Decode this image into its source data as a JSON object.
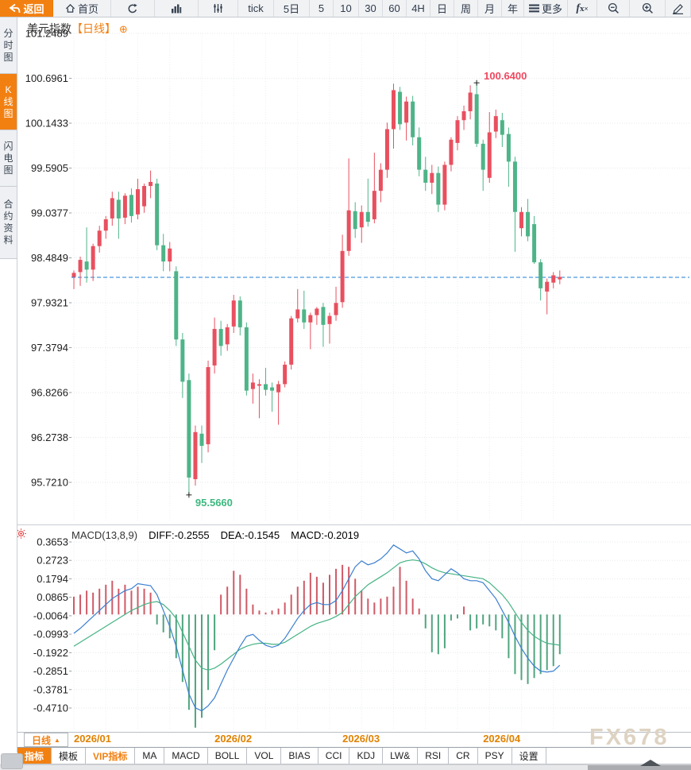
{
  "toolbar": {
    "items": [
      {
        "name": "back",
        "label": "返回",
        "icon": "back-arrow",
        "style": "primary",
        "w": 67
      },
      {
        "name": "home",
        "label": "首页",
        "icon": "home",
        "w": 73
      },
      {
        "name": "refresh",
        "label": "",
        "icon": "refresh",
        "w": 55
      },
      {
        "name": "column-chart",
        "label": "",
        "icon": "column-chart",
        "w": 55
      },
      {
        "name": "sliders",
        "label": "",
        "icon": "sliders",
        "w": 50
      },
      {
        "name": "tick",
        "label": "tick",
        "w": 45
      },
      {
        "name": "5d",
        "label": "5日",
        "w": 45
      },
      {
        "name": "5",
        "label": "5",
        "w": 30
      },
      {
        "name": "10",
        "label": "10",
        "w": 32
      },
      {
        "name": "30",
        "label": "30",
        "w": 30
      },
      {
        "name": "60",
        "label": "60",
        "w": 30
      },
      {
        "name": "4h",
        "label": "4H",
        "w": 30
      },
      {
        "name": "day",
        "label": "日",
        "w": 30
      },
      {
        "name": "week",
        "label": "周",
        "w": 30
      },
      {
        "name": "month",
        "label": "月",
        "w": 30
      },
      {
        "name": "year",
        "label": "年",
        "w": 28
      },
      {
        "name": "more",
        "label": "更多",
        "icon": "menu",
        "w": 55
      },
      {
        "name": "fx",
        "label": "",
        "icon": "fx",
        "w": 37
      },
      {
        "name": "zoom-out",
        "label": "",
        "icon": "zoom-out",
        "w": 41
      },
      {
        "name": "zoom-in",
        "label": "",
        "icon": "zoom-in",
        "w": 45
      },
      {
        "name": "draw",
        "label": "",
        "icon": "pencil",
        "w": 32
      }
    ]
  },
  "sidebar": {
    "items": [
      {
        "name": "time-chart",
        "label": "分时图",
        "active": false,
        "h": 70
      },
      {
        "name": "kline-chart",
        "label": "K线图",
        "active": true,
        "h": 70
      },
      {
        "name": "lightning-chart",
        "label": "闪电图",
        "active": false,
        "h": 70
      },
      {
        "name": "contract-info",
        "label": "合约资料",
        "active": false,
        "h": 90
      }
    ]
  },
  "chart_header": {
    "symbol": "美元指数",
    "period": "【日线】",
    "add_icon": "⊕"
  },
  "macd_header": {
    "name": "MACD(13,8,9)",
    "diff": "DIFF:-0.2555",
    "dea": "DEA:-0.1545",
    "macd": "MACD:-0.2019"
  },
  "period_selector": {
    "label": "日线",
    "arrow": "▲"
  },
  "bottom_tabs": {
    "items": [
      {
        "name": "indicator",
        "label": "指标",
        "style": "active"
      },
      {
        "name": "template",
        "label": "模板",
        "style": ""
      },
      {
        "name": "vip-indicator",
        "label": "VIP指标",
        "style": "vip"
      },
      {
        "name": "ma",
        "label": "MA",
        "style": ""
      },
      {
        "name": "macd",
        "label": "MACD",
        "style": ""
      },
      {
        "name": "boll",
        "label": "BOLL",
        "style": ""
      },
      {
        "name": "vol",
        "label": "VOL",
        "style": ""
      },
      {
        "name": "bias",
        "label": "BIAS",
        "style": ""
      },
      {
        "name": "cci",
        "label": "CCI",
        "style": ""
      },
      {
        "name": "kdj",
        "label": "KDJ",
        "style": ""
      },
      {
        "name": "lw",
        "label": "LW&",
        "style": ""
      },
      {
        "name": "rsi",
        "label": "RSI",
        "style": ""
      },
      {
        "name": "cr",
        "label": "CR",
        "style": ""
      },
      {
        "name": "psy",
        "label": "PSY",
        "style": ""
      },
      {
        "name": "settings",
        "label": "设置",
        "style": ""
      }
    ]
  },
  "watermark": {
    "text": "FX678"
  },
  "colors": {
    "accent_orange": "#f28011",
    "candle_up": "#e8505f",
    "candle_down": "#4eb488",
    "hist_up": "#cf5a66",
    "hist_down": "#4fa57e",
    "diff_line": "#3b7fd0",
    "dea_line": "#45b384",
    "last_price_line": "#1c7cd6",
    "annotation_high": "#f0485f",
    "annotation_low": "#3cb87f",
    "month_label": "#e08200",
    "tick_label": "#1d1d1d",
    "grid": "#e7e9ec",
    "vgrid": "#edeff1",
    "panel_border": "#c8ccd1"
  },
  "chart_data": [
    {
      "type": "candlestick",
      "title": "美元指数【日线】",
      "ylabel": "price",
      "y_ticks": [
        "101.2489",
        "100.6961",
        "100.1433",
        "99.5905",
        "99.0377",
        "98.4849",
        "97.9321",
        "97.3794",
        "96.8266",
        "96.2738",
        "95.7210"
      ],
      "ylim": [
        95.721,
        101.2489
      ],
      "x_axis_labels": [
        {
          "label": "2026/01",
          "index": 0
        },
        {
          "label": "2026/02",
          "index": 22
        },
        {
          "label": "2026/03",
          "index": 42
        },
        {
          "label": "2026/04",
          "index": 64
        }
      ],
      "last_price": 98.245,
      "annotations": [
        {
          "kind": "high",
          "index": 63,
          "label": "100.6400"
        },
        {
          "kind": "low",
          "index": 18,
          "label": "95.5660"
        }
      ],
      "candles": [
        [
          98.25,
          98.33,
          98.1,
          98.3
        ],
        [
          98.31,
          98.5,
          98.14,
          98.46
        ],
        [
          98.44,
          98.86,
          98.18,
          98.34
        ],
        [
          98.34,
          98.66,
          98.2,
          98.63
        ],
        [
          98.63,
          98.88,
          98.55,
          98.82
        ],
        [
          98.82,
          99.0,
          98.72,
          98.96
        ],
        [
          98.97,
          99.3,
          98.88,
          99.22
        ],
        [
          99.2,
          99.3,
          98.72,
          98.97
        ],
        [
          98.98,
          99.28,
          98.9,
          99.25
        ],
        [
          99.26,
          99.34,
          98.92,
          99.0
        ],
        [
          99.02,
          99.46,
          98.96,
          99.33
        ],
        [
          99.12,
          99.4,
          99.04,
          99.37
        ],
        [
          99.37,
          99.56,
          99.22,
          99.42
        ],
        [
          99.4,
          99.46,
          98.58,
          98.64
        ],
        [
          98.64,
          98.78,
          98.32,
          98.44
        ],
        [
          98.44,
          98.68,
          98.32,
          98.6
        ],
        [
          98.32,
          98.38,
          97.4,
          97.48
        ],
        [
          97.48,
          97.56,
          96.76,
          96.96
        ],
        [
          96.98,
          97.06,
          95.566,
          95.78
        ],
        [
          95.76,
          96.42,
          95.68,
          96.34
        ],
        [
          96.32,
          96.42,
          95.96,
          96.17
        ],
        [
          96.19,
          97.22,
          96.09,
          97.14
        ],
        [
          97.16,
          97.75,
          97.06,
          97.61
        ],
        [
          97.61,
          97.71,
          97.28,
          97.4
        ],
        [
          97.42,
          97.67,
          97.34,
          97.63
        ],
        [
          97.64,
          98.03,
          97.56,
          97.96
        ],
        [
          97.96,
          98.01,
          97.53,
          97.63
        ],
        [
          97.63,
          97.69,
          96.79,
          96.85
        ],
        [
          96.87,
          97.06,
          96.69,
          96.95
        ],
        [
          96.91,
          96.99,
          96.51,
          96.93
        ],
        [
          96.93,
          97.13,
          96.79,
          96.86
        ],
        [
          96.89,
          96.95,
          96.59,
          96.85
        ],
        [
          96.83,
          96.97,
          96.43,
          96.93
        ],
        [
          96.93,
          97.21,
          96.89,
          97.17
        ],
        [
          97.17,
          97.77,
          97.11,
          97.74
        ],
        [
          97.74,
          98.1,
          97.69,
          97.85
        ],
        [
          97.85,
          98.08,
          97.61,
          97.69
        ],
        [
          97.69,
          97.81,
          97.36,
          97.78
        ],
        [
          97.78,
          97.88,
          97.66,
          97.86
        ],
        [
          97.88,
          97.93,
          97.39,
          97.66
        ],
        [
          97.67,
          97.81,
          97.43,
          97.77
        ],
        [
          97.78,
          98.13,
          97.71,
          97.93
        ],
        [
          97.94,
          98.77,
          97.87,
          98.57
        ],
        [
          98.57,
          99.71,
          98.51,
          99.07
        ],
        [
          99.06,
          99.17,
          98.73,
          98.84
        ],
        [
          98.86,
          99.13,
          98.67,
          99.05
        ],
        [
          99.05,
          99.46,
          98.87,
          98.93
        ],
        [
          98.96,
          99.78,
          98.91,
          99.31
        ],
        [
          99.31,
          99.65,
          99.17,
          99.57
        ],
        [
          99.57,
          100.15,
          99.47,
          100.07
        ],
        [
          100.07,
          100.63,
          99.83,
          100.55
        ],
        [
          100.53,
          100.59,
          100.06,
          100.13
        ],
        [
          100.15,
          100.47,
          99.93,
          100.41
        ],
        [
          100.41,
          100.48,
          99.87,
          99.97
        ],
        [
          99.97,
          100.09,
          99.49,
          99.57
        ],
        [
          99.57,
          99.73,
          99.31,
          99.41
        ],
        [
          99.41,
          99.63,
          99.27,
          99.53
        ],
        [
          99.53,
          99.61,
          99.05,
          99.14
        ],
        [
          99.14,
          99.67,
          99.07,
          99.63
        ],
        [
          99.63,
          99.97,
          99.55,
          99.94
        ],
        [
          99.9,
          100.23,
          99.81,
          100.18
        ],
        [
          100.18,
          100.36,
          100.06,
          100.29
        ],
        [
          100.29,
          100.61,
          100.19,
          100.52
        ],
        [
          100.5,
          100.64,
          99.85,
          99.89
        ],
        [
          99.89,
          99.94,
          99.31,
          99.57
        ],
        [
          99.47,
          100.28,
          99.41,
          100.03
        ],
        [
          100.04,
          100.31,
          99.96,
          100.23
        ],
        [
          100.18,
          100.27,
          99.85,
          100.0
        ],
        [
          100.01,
          100.09,
          99.36,
          99.67
        ],
        [
          99.67,
          99.73,
          98.56,
          99.05
        ],
        [
          98.85,
          99.11,
          98.75,
          99.05
        ],
        [
          99.05,
          99.21,
          98.69,
          98.75
        ],
        [
          98.9,
          99.0,
          98.41,
          98.43
        ],
        [
          98.43,
          98.47,
          97.96,
          98.11
        ],
        [
          98.07,
          98.23,
          97.79,
          98.19
        ],
        [
          98.18,
          98.31,
          98.11,
          98.27
        ],
        [
          98.22,
          98.33,
          98.16,
          98.25
        ]
      ]
    },
    {
      "type": "macd",
      "label": "MACD(13,8,9)",
      "diff_value": -0.2555,
      "dea_value": -0.1545,
      "macd_value": -0.2019,
      "y_ticks": [
        "0.3653",
        "0.2723",
        "0.1794",
        "0.0865",
        "-0.0064",
        "-0.0993",
        "-0.1922",
        "-0.2851",
        "-0.3781",
        "-0.4710"
      ],
      "ylim": [
        -0.471,
        0.3653
      ],
      "histogram": [
        0.09,
        0.1,
        0.12,
        0.11,
        0.13,
        0.15,
        0.17,
        0.13,
        0.15,
        0.12,
        0.14,
        0.13,
        0.11,
        -0.05,
        -0.09,
        -0.12,
        -0.22,
        -0.34,
        -0.48,
        -0.57,
        -0.52,
        -0.38,
        -0.18,
        0.1,
        0.14,
        0.22,
        0.2,
        0.13,
        0.05,
        0.02,
        0.01,
        0.02,
        0.03,
        0.06,
        0.1,
        0.14,
        0.17,
        0.21,
        0.19,
        0.16,
        0.2,
        0.23,
        0.25,
        0.24,
        0.18,
        0.12,
        0.08,
        0.06,
        0.08,
        0.09,
        0.14,
        0.24,
        0.17,
        0.08,
        0.03,
        -0.07,
        -0.19,
        -0.2,
        -0.17,
        -0.03,
        -0.02,
        0.04,
        -0.08,
        -0.07,
        -0.05,
        -0.06,
        -0.08,
        -0.12,
        -0.22,
        -0.3,
        -0.33,
        -0.35,
        -0.32,
        -0.3,
        -0.28,
        -0.26,
        -0.2
      ],
      "diff_line": [
        -0.095,
        -0.07,
        -0.04,
        -0.01,
        0.02,
        0.05,
        0.08,
        0.1,
        0.12,
        0.13,
        0.155,
        0.15,
        0.145,
        0.1,
        0.02,
        -0.06,
        -0.16,
        -0.28,
        -0.4,
        -0.47,
        -0.485,
        -0.46,
        -0.42,
        -0.35,
        -0.28,
        -0.22,
        -0.16,
        -0.11,
        -0.1,
        -0.13,
        -0.155,
        -0.165,
        -0.155,
        -0.12,
        -0.07,
        -0.02,
        0.02,
        0.05,
        0.06,
        0.05,
        0.05,
        0.07,
        0.12,
        0.18,
        0.24,
        0.27,
        0.25,
        0.26,
        0.28,
        0.31,
        0.35,
        0.33,
        0.31,
        0.32,
        0.28,
        0.22,
        0.18,
        0.17,
        0.2,
        0.23,
        0.21,
        0.18,
        0.17,
        0.17,
        0.16,
        0.12,
        0.08,
        0.02,
        -0.04,
        -0.11,
        -0.17,
        -0.22,
        -0.26,
        -0.285,
        -0.29,
        -0.285,
        -0.2555
      ],
      "dea_line": [
        -0.16,
        -0.14,
        -0.12,
        -0.1,
        -0.08,
        -0.06,
        -0.04,
        -0.02,
        0.0,
        0.02,
        0.035,
        0.05,
        0.06,
        0.065,
        0.05,
        0.02,
        -0.02,
        -0.09,
        -0.16,
        -0.23,
        -0.27,
        -0.28,
        -0.27,
        -0.25,
        -0.225,
        -0.2,
        -0.175,
        -0.16,
        -0.15,
        -0.145,
        -0.145,
        -0.15,
        -0.15,
        -0.14,
        -0.12,
        -0.1,
        -0.08,
        -0.06,
        -0.045,
        -0.035,
        -0.025,
        -0.01,
        0.01,
        0.05,
        0.09,
        0.12,
        0.15,
        0.17,
        0.19,
        0.21,
        0.235,
        0.26,
        0.27,
        0.275,
        0.27,
        0.255,
        0.235,
        0.22,
        0.21,
        0.205,
        0.2,
        0.195,
        0.19,
        0.185,
        0.18,
        0.16,
        0.13,
        0.1,
        0.06,
        0.01,
        -0.04,
        -0.08,
        -0.11,
        -0.13,
        -0.145,
        -0.15,
        -0.1545
      ]
    }
  ]
}
